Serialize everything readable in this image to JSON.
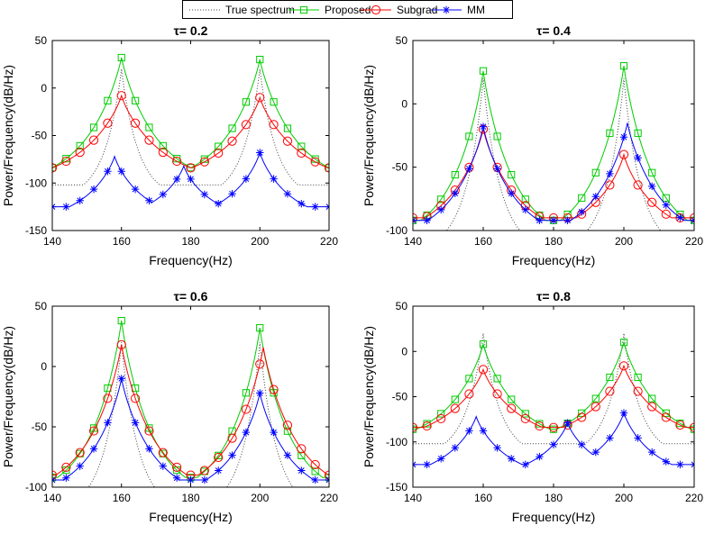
{
  "legend": {
    "entries": [
      {
        "name": "True spectrum",
        "color": "#404040",
        "style": "dotted",
        "marker": "none"
      },
      {
        "name": "Proposed",
        "color": "#00cc00",
        "style": "solid",
        "marker": "square"
      },
      {
        "name": "Subgrad",
        "color": "#ff0000",
        "style": "solid",
        "marker": "circle"
      },
      {
        "name": "MM",
        "color": "#0000ff",
        "style": "solid",
        "marker": "asterisk"
      }
    ]
  },
  "chart_data": [
    {
      "type": "line",
      "title": "τ= 0.2",
      "xlabel": "Frequency(Hz)",
      "ylabel": "Power/Frequency(dB/Hz)",
      "xlim": [
        140,
        220
      ],
      "ylim": [
        -150,
        50
      ],
      "xticks": [
        "140",
        "160",
        "180",
        "200",
        "220"
      ],
      "yticks": [
        "50",
        "0",
        "-50",
        "-100",
        "-150"
      ],
      "series": [
        {
          "name": "True spectrum",
          "params": {
            "base": -102,
            "peaks": [
              [
                160,
                20
              ],
              [
                200,
                20
              ]
            ],
            "w": 5.0,
            "pw": 0.9
          }
        },
        {
          "name": "Proposed",
          "params": {
            "base": -86,
            "peaks": [
              [
                160,
                32
              ],
              [
                200,
                30
              ]
            ],
            "w": 11.0,
            "pw": 0.8
          },
          "markers": [
            140,
            144,
            148,
            152,
            156,
            160,
            164,
            168,
            172,
            176,
            180,
            184,
            188,
            192,
            196,
            200,
            204,
            208,
            212,
            216,
            220
          ]
        },
        {
          "name": "Subgrad",
          "params": {
            "base": -84,
            "peaks": [
              [
                160,
                -8
              ],
              [
                200,
                -10
              ]
            ],
            "w": 13.0,
            "pw": 0.9
          },
          "markers": [
            140,
            144,
            148,
            152,
            156,
            160,
            164,
            168,
            172,
            176,
            180,
            184,
            188,
            192,
            196,
            200,
            204,
            208,
            212,
            216,
            220
          ]
        },
        {
          "name": "MM",
          "params": {
            "base": -125,
            "peaks": [
              [
                158,
                -72
              ],
              [
                178,
                -82
              ],
              [
                200,
                -68
              ]
            ],
            "w": 10.0,
            "pw": 0.9
          },
          "markers": [
            140,
            144,
            148,
            152,
            156,
            160,
            164,
            168,
            172,
            176,
            180,
            184,
            188,
            192,
            196,
            200,
            204,
            208,
            212,
            216,
            220
          ]
        }
      ]
    },
    {
      "type": "line",
      "title": "τ= 0.4",
      "xlabel": "Frequency(Hz)",
      "ylabel": "Power/Frequency(dB/Hz)",
      "xlim": [
        140,
        220
      ],
      "ylim": [
        -100,
        50
      ],
      "xticks": [
        "140",
        "160",
        "180",
        "200",
        "220"
      ],
      "yticks": [
        "50",
        "0",
        "-50",
        "-100"
      ],
      "series": [
        {
          "name": "True spectrum",
          "params": {
            "base": -102,
            "peaks": [
              [
                160,
                20
              ],
              [
                200,
                20
              ]
            ],
            "w": 5.0,
            "pw": 0.9
          }
        },
        {
          "name": "Proposed",
          "params": {
            "base": -92,
            "peaks": [
              [
                160,
                26
              ],
              [
                200,
                30
              ]
            ],
            "w": 9.0,
            "pw": 0.8
          },
          "markers": [
            140,
            144,
            148,
            152,
            156,
            160,
            164,
            168,
            172,
            176,
            180,
            184,
            188,
            192,
            196,
            200,
            204,
            208,
            212,
            216,
            220
          ]
        },
        {
          "name": "Subgrad",
          "params": {
            "base": -90,
            "peaks": [
              [
                160,
                -20
              ],
              [
                200,
                -40
              ]
            ],
            "w": 11.0,
            "pw": 0.9
          },
          "markers": [
            140,
            144,
            148,
            152,
            156,
            160,
            164,
            168,
            172,
            176,
            180,
            184,
            188,
            192,
            196,
            200,
            204,
            208,
            212,
            216,
            220
          ]
        },
        {
          "name": "MM",
          "params": {
            "base": -92,
            "peaks": [
              [
                160,
                -18
              ],
              [
                201,
                -15
              ]
            ],
            "w": 10.0,
            "pw": 0.9
          },
          "markers": [
            140,
            144,
            148,
            152,
            156,
            160,
            164,
            168,
            172,
            176,
            180,
            184,
            188,
            192,
            196,
            200,
            204,
            208,
            212,
            216,
            220
          ]
        }
      ]
    },
    {
      "type": "line",
      "title": "τ= 0.6",
      "xlabel": "Frequency(Hz)",
      "ylabel": "Power/Frequency(dB/Hz)",
      "xlim": [
        140,
        220
      ],
      "ylim": [
        -100,
        50
      ],
      "xticks": [
        "140",
        "160",
        "180",
        "200",
        "220"
      ],
      "yticks": [
        "50",
        "0",
        "-50",
        "-100"
      ],
      "series": [
        {
          "name": "True spectrum",
          "params": {
            "base": -106,
            "peaks": [
              [
                160,
                20
              ],
              [
                200,
                20
              ]
            ],
            "w": 5.0,
            "pw": 0.9
          }
        },
        {
          "name": "Proposed",
          "params": {
            "base": -92,
            "peaks": [
              [
                160,
                38
              ],
              [
                200,
                32
              ]
            ],
            "w": 9.0,
            "pw": 0.8
          },
          "markers": [
            140,
            144,
            148,
            152,
            156,
            160,
            164,
            168,
            172,
            176,
            180,
            184,
            188,
            192,
            196,
            200,
            204,
            208,
            212,
            216,
            220
          ]
        },
        {
          "name": "Subgrad",
          "params": {
            "base": -90,
            "peaks": [
              [
                160,
                18
              ],
              [
                201,
                16
              ]
            ],
            "w": 10.0,
            "pw": 0.9
          },
          "markers": [
            140,
            144,
            148,
            152,
            156,
            160,
            164,
            168,
            172,
            176,
            180,
            184,
            188,
            192,
            196,
            200,
            204,
            208,
            212,
            216,
            220
          ]
        },
        {
          "name": "MM",
          "params": {
            "base": -94,
            "peaks": [
              [
                160,
                -10
              ],
              [
                200,
                -22
              ]
            ],
            "w": 10.0,
            "pw": 0.9
          },
          "markers": [
            140,
            144,
            148,
            152,
            156,
            160,
            164,
            168,
            172,
            176,
            180,
            184,
            188,
            192,
            196,
            200,
            204,
            208,
            212,
            216,
            220
          ]
        }
      ]
    },
    {
      "type": "line",
      "title": "τ= 0.8",
      "xlabel": "Frequency(Hz)",
      "ylabel": "Power/Frequency(dB/Hz)",
      "xlim": [
        140,
        220
      ],
      "ylim": [
        -150,
        50
      ],
      "xticks": [
        "140",
        "160",
        "180",
        "200",
        "220"
      ],
      "yticks": [
        "50",
        "0",
        "-50",
        "-100",
        "-150"
      ],
      "series": [
        {
          "name": "True spectrum",
          "params": {
            "base": -102,
            "peaks": [
              [
                160,
                20
              ],
              [
                200,
                20
              ]
            ],
            "w": 5.0,
            "pw": 0.9
          }
        },
        {
          "name": "Proposed",
          "params": {
            "base": -86,
            "peaks": [
              [
                160,
                8
              ],
              [
                200,
                10
              ]
            ],
            "w": 11.0,
            "pw": 0.8
          },
          "markers": [
            140,
            144,
            148,
            152,
            156,
            160,
            164,
            168,
            172,
            176,
            180,
            184,
            188,
            192,
            196,
            200,
            204,
            208,
            212,
            216,
            220
          ]
        },
        {
          "name": "Subgrad",
          "params": {
            "base": -84,
            "peaks": [
              [
                160,
                -20
              ],
              [
                200,
                -16
              ]
            ],
            "w": 12.0,
            "pw": 0.9
          },
          "markers": [
            140,
            144,
            148,
            152,
            156,
            160,
            164,
            168,
            172,
            176,
            180,
            184,
            188,
            192,
            196,
            200,
            204,
            208,
            212,
            216,
            220
          ]
        },
        {
          "name": "MM",
          "params": {
            "base": -125,
            "peaks": [
              [
                158,
                -72
              ],
              [
                184,
                -79
              ],
              [
                200,
                -68
              ]
            ],
            "w": 10.0,
            "pw": 0.9
          },
          "markers": [
            140,
            144,
            148,
            152,
            156,
            160,
            164,
            168,
            172,
            176,
            180,
            184,
            188,
            192,
            196,
            200,
            204,
            208,
            212,
            216,
            220
          ]
        }
      ]
    }
  ]
}
